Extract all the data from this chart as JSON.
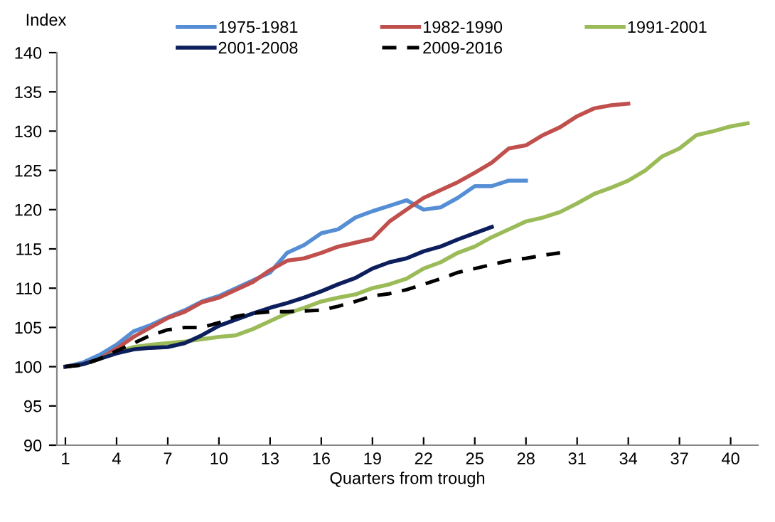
{
  "chart_data": {
    "type": "line",
    "ylabel": "Index",
    "xlabel": "Quarters from trough",
    "xlim": [
      0.5,
      41.6
    ],
    "xticks": [
      1,
      4,
      7,
      10,
      13,
      16,
      19,
      22,
      25,
      28,
      31,
      34,
      37,
      40
    ],
    "ylim": [
      90,
      140
    ],
    "yticks": [
      90,
      95,
      100,
      105,
      110,
      115,
      120,
      125,
      130,
      135,
      140
    ],
    "grid": false,
    "legend": "top",
    "series": [
      {
        "name": "1975-1981",
        "color": "#558ed5",
        "line_style": "solid",
        "x": [
          1,
          2,
          3,
          4,
          5,
          6,
          7,
          8,
          9,
          10,
          11,
          12,
          13,
          14,
          15,
          16,
          17,
          18,
          19,
          20,
          21,
          22,
          23,
          24,
          25,
          26,
          27,
          28
        ],
        "values": [
          100,
          100.5,
          101.5,
          102.8,
          104.5,
          105.3,
          106.3,
          107.2,
          108.3,
          109,
          110,
          111,
          112,
          114.5,
          115.5,
          117,
          117.5,
          119,
          119.8,
          120.5,
          121.2,
          120,
          120.3,
          121.5,
          123,
          123,
          123.7,
          123.7
        ]
      },
      {
        "name": "1982-1990",
        "color": "#c0504d",
        "line_style": "solid",
        "x": [
          1,
          2,
          3,
          4,
          5,
          6,
          7,
          8,
          9,
          10,
          11,
          12,
          13,
          14,
          15,
          16,
          17,
          18,
          19,
          20,
          21,
          22,
          23,
          24,
          25,
          26,
          27,
          28,
          29,
          30,
          31,
          32,
          33,
          34
        ],
        "values": [
          100,
          100.3,
          101,
          102.3,
          103.8,
          105,
          106.2,
          107,
          108.2,
          108.8,
          109.8,
          110.8,
          112.3,
          113.5,
          113.8,
          114.5,
          115.3,
          115.8,
          116.3,
          118.5,
          120,
          121.5,
          122.5,
          123.5,
          124.7,
          126,
          127.8,
          128.2,
          129.5,
          130.5,
          131.9,
          132.9,
          133.3,
          133.5
        ]
      },
      {
        "name": "1991-2001",
        "color": "#9bbb59",
        "line_style": "solid",
        "x": [
          1,
          2,
          3,
          4,
          5,
          6,
          7,
          8,
          9,
          10,
          11,
          12,
          13,
          14,
          15,
          16,
          17,
          18,
          19,
          20,
          21,
          22,
          23,
          24,
          25,
          26,
          27,
          28,
          29,
          30,
          31,
          32,
          33,
          34,
          35,
          36,
          37,
          38,
          39,
          40,
          41
        ],
        "values": [
          100,
          100.3,
          101,
          101.8,
          102.5,
          102.8,
          103,
          103.2,
          103.5,
          103.8,
          104,
          104.8,
          105.8,
          106.8,
          107.5,
          108.3,
          108.8,
          109.2,
          110,
          110.5,
          111.2,
          112.5,
          113.3,
          114.5,
          115.3,
          116.5,
          117.5,
          118.5,
          119,
          119.7,
          120.8,
          122,
          122.8,
          123.7,
          125,
          126.8,
          127.8,
          129.5,
          130,
          130.6,
          131
        ]
      },
      {
        "name": "2001-2008",
        "color": "#0c1f5c",
        "line_style": "solid",
        "x": [
          1,
          2,
          3,
          4,
          5,
          6,
          7,
          8,
          9,
          10,
          11,
          12,
          13,
          14,
          15,
          16,
          17,
          18,
          19,
          20,
          21,
          22,
          23,
          24,
          25,
          26
        ],
        "values": [
          100,
          100.3,
          101,
          101.7,
          102.2,
          102.4,
          102.5,
          103,
          104,
          105.2,
          106,
          106.8,
          107.5,
          108.1,
          108.8,
          109.6,
          110.5,
          111.3,
          112.5,
          113.3,
          113.8,
          114.7,
          115.3,
          116.2,
          117,
          117.8
        ]
      },
      {
        "name": "2009-2016",
        "color": "#000000",
        "line_style": "dashed",
        "x": [
          1,
          2,
          3,
          4,
          5,
          6,
          7,
          8,
          9,
          10,
          11,
          12,
          13,
          14,
          15,
          16,
          17,
          18,
          19,
          20,
          21,
          22,
          23,
          24,
          25,
          26,
          27,
          28,
          29,
          30
        ],
        "values": [
          100,
          100.2,
          101,
          102,
          103,
          104,
          104.7,
          105,
          105,
          105.6,
          106.4,
          106.8,
          107,
          107,
          107.1,
          107.2,
          107.7,
          108.3,
          109,
          109.3,
          109.8,
          110.5,
          111.2,
          112,
          112.5,
          113,
          113.5,
          113.8,
          114.2,
          114.5
        ]
      }
    ]
  }
}
